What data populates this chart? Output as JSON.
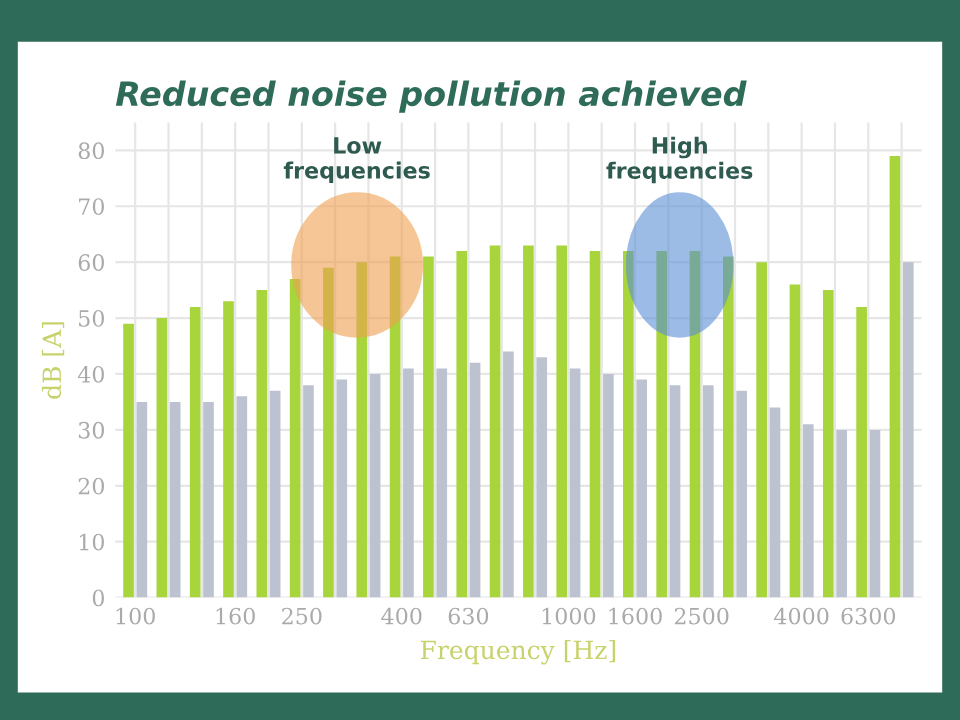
{
  "chart_data": {
    "type": "bar",
    "title": "Reduced noise pollution achieved",
    "xlabel": "Frequency [Hz]",
    "ylabel": "dB [A]",
    "categories": [
      "100",
      null,
      null,
      "160",
      null,
      "250",
      null,
      null,
      "400",
      null,
      "630",
      null,
      null,
      "1000",
      null,
      "1600",
      null,
      "2500",
      null,
      null,
      "4000",
      null,
      "6300",
      null
    ],
    "series": [
      {
        "color": "#a8d43c",
        "values": [
          49,
          50,
          52,
          53,
          55,
          57,
          59,
          60,
          61,
          61,
          62,
          63,
          63,
          63,
          62,
          62,
          62,
          62,
          61,
          60,
          56,
          55,
          52,
          79
        ]
      },
      {
        "color": "#bcc2cf",
        "values": [
          35,
          35,
          35,
          36,
          37,
          38,
          39,
          40,
          41,
          41,
          42,
          44,
          43,
          41,
          40,
          39,
          38,
          38,
          37,
          34,
          31,
          30,
          30,
          60
        ]
      }
    ],
    "ylim": [
      0,
      85
    ],
    "yticks": [
      0,
      10,
      20,
      30,
      40,
      50,
      60,
      70,
      80
    ],
    "grid": true,
    "annotations": [
      "Low frequencies",
      "High frequencies"
    ]
  }
}
